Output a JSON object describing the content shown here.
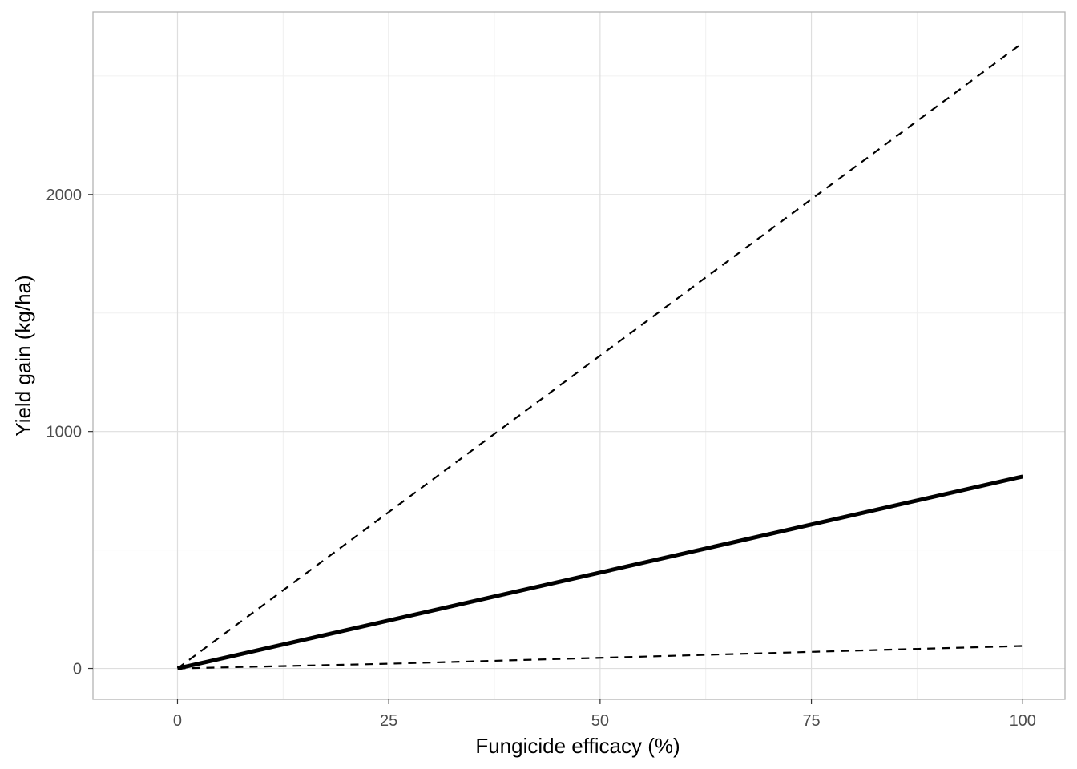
{
  "chart_data": {
    "type": "line",
    "title": "",
    "xlabel": "Fungicide efficacy (%)",
    "ylabel": "Yield gain (kg/ha)",
    "xlim": [
      -10,
      105
    ],
    "ylim": [
      -130,
      2770
    ],
    "x_ticks": [
      0,
      25,
      50,
      75,
      100
    ],
    "y_ticks": [
      0,
      1000,
      2000
    ],
    "x_tick_labels": [
      "0",
      "25",
      "50",
      "75",
      "100"
    ],
    "y_tick_labels": [
      "0",
      "1000",
      "2000"
    ],
    "grid": true,
    "legend": "none",
    "series": [
      {
        "style": "solid",
        "color": "#000000",
        "x": [
          0,
          100
        ],
        "y": [
          0,
          810
        ]
      },
      {
        "style": "dashed",
        "color": "#000000",
        "x": [
          0,
          100
        ],
        "y": [
          0,
          2640
        ]
      },
      {
        "style": "dashed",
        "color": "#000000",
        "x": [
          0,
          25,
          50,
          75,
          100
        ],
        "y": [
          0,
          20,
          45,
          70,
          95
        ]
      }
    ]
  }
}
